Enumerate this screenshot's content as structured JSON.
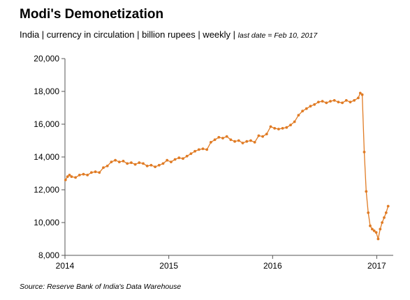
{
  "title": "Modi's Demonetization",
  "subtitle_main": "India | currency in circulation | billion rupees | weekly | ",
  "subtitle_note": "last date = Feb 10, 2017",
  "source": "Source: Reserve Bank of India's Data Warehouse",
  "colors": {
    "series": "#e07b24",
    "axis": "#555555"
  },
  "chart_data": {
    "type": "line",
    "series": [
      {
        "values": [
          [
            "2014-01-03",
            12600
          ],
          [
            "2014-01-10",
            12800
          ],
          [
            "2014-01-17",
            12900
          ],
          [
            "2014-01-24",
            12800
          ],
          [
            "2014-02-07",
            12750
          ],
          [
            "2014-02-21",
            12900
          ],
          [
            "2014-03-07",
            12950
          ],
          [
            "2014-03-21",
            12900
          ],
          [
            "2014-04-04",
            13050
          ],
          [
            "2014-04-18",
            13100
          ],
          [
            "2014-05-02",
            13050
          ],
          [
            "2014-05-16",
            13350
          ],
          [
            "2014-05-30",
            13450
          ],
          [
            "2014-06-13",
            13700
          ],
          [
            "2014-06-27",
            13800
          ],
          [
            "2014-07-11",
            13700
          ],
          [
            "2014-07-25",
            13750
          ],
          [
            "2014-08-08",
            13600
          ],
          [
            "2014-08-22",
            13650
          ],
          [
            "2014-09-05",
            13550
          ],
          [
            "2014-09-19",
            13650
          ],
          [
            "2014-10-03",
            13600
          ],
          [
            "2014-10-17",
            13450
          ],
          [
            "2014-10-31",
            13500
          ],
          [
            "2014-11-14",
            13400
          ],
          [
            "2014-11-28",
            13500
          ],
          [
            "2014-12-12",
            13600
          ],
          [
            "2014-12-26",
            13800
          ],
          [
            "2015-01-09",
            13700
          ],
          [
            "2015-01-23",
            13850
          ],
          [
            "2015-02-06",
            13950
          ],
          [
            "2015-02-20",
            13900
          ],
          [
            "2015-03-06",
            14050
          ],
          [
            "2015-03-20",
            14200
          ],
          [
            "2015-04-03",
            14350
          ],
          [
            "2015-04-17",
            14450
          ],
          [
            "2015-05-01",
            14500
          ],
          [
            "2015-05-15",
            14450
          ],
          [
            "2015-05-29",
            14900
          ],
          [
            "2015-06-12",
            15050
          ],
          [
            "2015-06-26",
            15200
          ],
          [
            "2015-07-10",
            15150
          ],
          [
            "2015-07-24",
            15250
          ],
          [
            "2015-08-07",
            15050
          ],
          [
            "2015-08-21",
            14950
          ],
          [
            "2015-09-04",
            15000
          ],
          [
            "2015-09-18",
            14850
          ],
          [
            "2015-10-02",
            14950
          ],
          [
            "2015-10-16",
            15000
          ],
          [
            "2015-10-30",
            14900
          ],
          [
            "2015-11-13",
            15300
          ],
          [
            "2015-11-27",
            15250
          ],
          [
            "2015-12-11",
            15400
          ],
          [
            "2015-12-25",
            15850
          ],
          [
            "2016-01-08",
            15750
          ],
          [
            "2016-01-22",
            15700
          ],
          [
            "2016-02-05",
            15750
          ],
          [
            "2016-02-19",
            15800
          ],
          [
            "2016-03-04",
            15950
          ],
          [
            "2016-03-18",
            16150
          ],
          [
            "2016-04-01",
            16550
          ],
          [
            "2016-04-15",
            16800
          ],
          [
            "2016-04-29",
            16950
          ],
          [
            "2016-05-13",
            17100
          ],
          [
            "2016-05-27",
            17200
          ],
          [
            "2016-06-10",
            17350
          ],
          [
            "2016-06-24",
            17400
          ],
          [
            "2016-07-08",
            17300
          ],
          [
            "2016-07-22",
            17400
          ],
          [
            "2016-08-05",
            17450
          ],
          [
            "2016-08-19",
            17350
          ],
          [
            "2016-09-02",
            17300
          ],
          [
            "2016-09-16",
            17450
          ],
          [
            "2016-09-30",
            17350
          ],
          [
            "2016-10-14",
            17450
          ],
          [
            "2016-10-28",
            17600
          ],
          [
            "2016-11-04",
            17900
          ],
          [
            "2016-11-11",
            17800
          ],
          [
            "2016-11-18",
            14300
          ],
          [
            "2016-11-25",
            11900
          ],
          [
            "2016-12-02",
            10600
          ],
          [
            "2016-12-09",
            9800
          ],
          [
            "2016-12-16",
            9600
          ],
          [
            "2016-12-23",
            9500
          ],
          [
            "2016-12-30",
            9400
          ],
          [
            "2017-01-06",
            9000
          ],
          [
            "2017-01-13",
            9600
          ],
          [
            "2017-01-20",
            10000
          ],
          [
            "2017-01-27",
            10300
          ],
          [
            "2017-02-03",
            10600
          ],
          [
            "2017-02-10",
            11000
          ]
        ]
      }
    ],
    "y_ticks": [
      "8,000",
      "10,000",
      "12,000",
      "14,000",
      "16,000",
      "18,000",
      "20,000"
    ],
    "x_ticks": [
      "2014",
      "2015",
      "2016",
      "2017"
    ],
    "ylim": [
      8000,
      20000
    ],
    "xlim": [
      "2014-01-01",
      "2017-02-28"
    ],
    "grid": false
  }
}
